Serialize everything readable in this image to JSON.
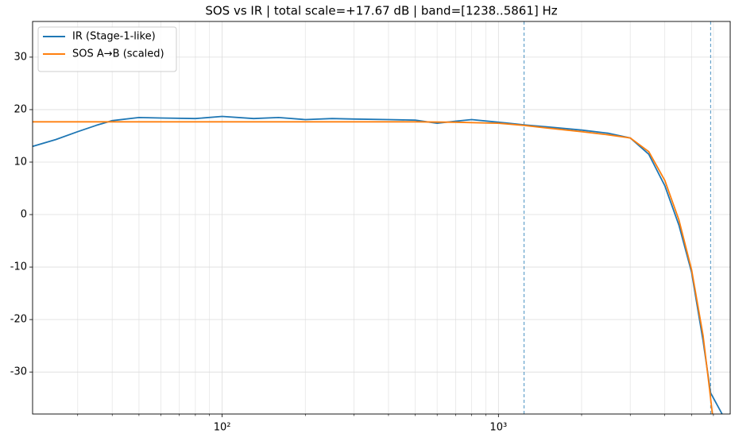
{
  "chart_data": {
    "type": "line",
    "title": "SOS vs IR | total scale=+17.67 dB  | band=[1238..5861] Hz",
    "xscale": "log",
    "xlim": [
      20.6,
      6900
    ],
    "ylim": [
      -38,
      36.8
    ],
    "xticks": [
      {
        "value": 100,
        "label": "10²"
      },
      {
        "value": 1000,
        "label": "10³"
      }
    ],
    "xminorticks": [
      30,
      40,
      50,
      60,
      70,
      80,
      90,
      200,
      300,
      400,
      500,
      600,
      700,
      800,
      900,
      2000,
      3000,
      4000,
      5000,
      6000
    ],
    "yticks": [
      -30,
      -20,
      -10,
      0,
      10,
      20,
      30
    ],
    "grid": true,
    "legend": "upper left",
    "vlines": [
      1238,
      5861
    ],
    "vline_color": "#1f77b4",
    "series": [
      {
        "name": "IR (Stage-1-like)",
        "color": "#1f77b4",
        "x": [
          20.6,
          25,
          30,
          35,
          40,
          50,
          60,
          80,
          100,
          130,
          160,
          200,
          250,
          300,
          400,
          500,
          600,
          700,
          800,
          1000,
          1238,
          1500,
          2000,
          2500,
          3000,
          3500,
          4000,
          4500,
          5000,
          5500,
          5861,
          6450
        ],
        "values": [
          13,
          14.3,
          15.8,
          17,
          17.9,
          18.5,
          18.4,
          18.3,
          18.7,
          18.3,
          18.5,
          18.1,
          18.3,
          18.2,
          18.1,
          18,
          17.4,
          17.8,
          18.1,
          17.6,
          17.1,
          16.7,
          16.1,
          15.5,
          14.6,
          11.5,
          5.5,
          -2,
          -11,
          -24,
          -34,
          -38
        ]
      },
      {
        "name": "SOS A→B (scaled)",
        "color": "#ff7f0e",
        "x": [
          20.6,
          50,
          100,
          200,
          500,
          700,
          1000,
          1238,
          1500,
          2000,
          2500,
          3000,
          3500,
          4000,
          4500,
          5000,
          5500,
          5800,
          5950
        ],
        "values": [
          17.67,
          17.67,
          17.67,
          17.67,
          17.67,
          17.6,
          17.4,
          17,
          16.5,
          15.8,
          15.2,
          14.6,
          12,
          6.5,
          -1,
          -10.5,
          -23,
          -33,
          -38
        ]
      }
    ]
  }
}
